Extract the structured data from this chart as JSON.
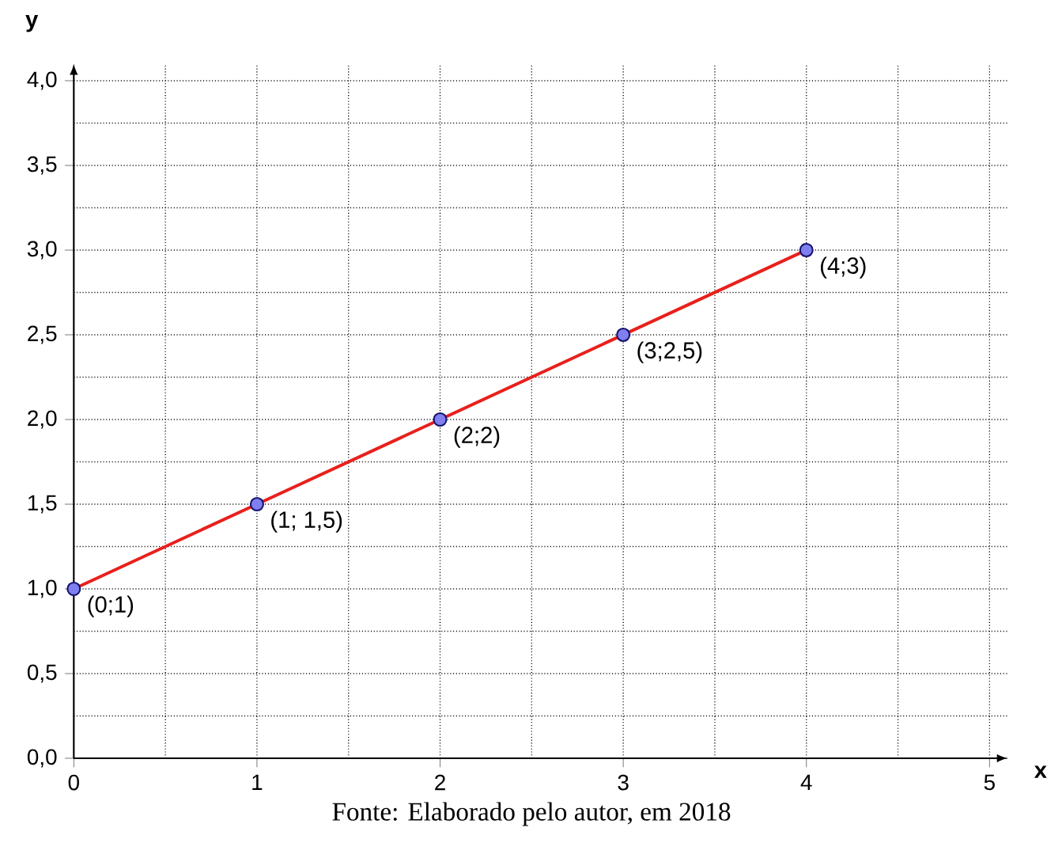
{
  "chart_data": {
    "type": "line",
    "xlabel": "x",
    "ylabel": "y",
    "xlim": [
      0,
      5.1
    ],
    "ylim": [
      0,
      4.1
    ],
    "xticks": [
      0,
      1,
      2,
      3,
      4,
      5
    ],
    "yticks": [
      {
        "value": 0,
        "label": "0,0"
      },
      {
        "value": 0.5,
        "label": "0,5"
      },
      {
        "value": 1,
        "label": "1,0"
      },
      {
        "value": 1.5,
        "label": "1,5"
      },
      {
        "value": 2,
        "label": "2,0"
      },
      {
        "value": 2.5,
        "label": "2,5"
      },
      {
        "value": 3,
        "label": "3,0"
      },
      {
        "value": 3.5,
        "label": "3,5"
      },
      {
        "value": 4,
        "label": "4,0"
      }
    ],
    "grid": true,
    "marker": "circle",
    "line_style": "solid",
    "x": [
      0,
      1,
      2,
      3,
      4
    ],
    "series": [
      {
        "color": "#e8201c",
        "colors": [
          "#7f7fef",
          "#7f7fef",
          "#7f7fef",
          "#7f7fef",
          "#7f7fef"
        ],
        "values": [
          1,
          1.5,
          2,
          2.5,
          3
        ]
      }
    ],
    "annotations": [
      {
        "text": "(0;1)",
        "x": 0,
        "y": 1
      },
      {
        "text": "(1; 1,5)",
        "x": 1,
        "y": 1.5
      },
      {
        "text": "(2;2)",
        "x": 2,
        "y": 2
      },
      {
        "text": "(3;2,5)",
        "x": 3,
        "y": 2.5
      },
      {
        "text": "(4;3)",
        "x": 4,
        "y": 3
      },
      "Fonte: Elaborado pelo autor, em 2018"
    ]
  }
}
